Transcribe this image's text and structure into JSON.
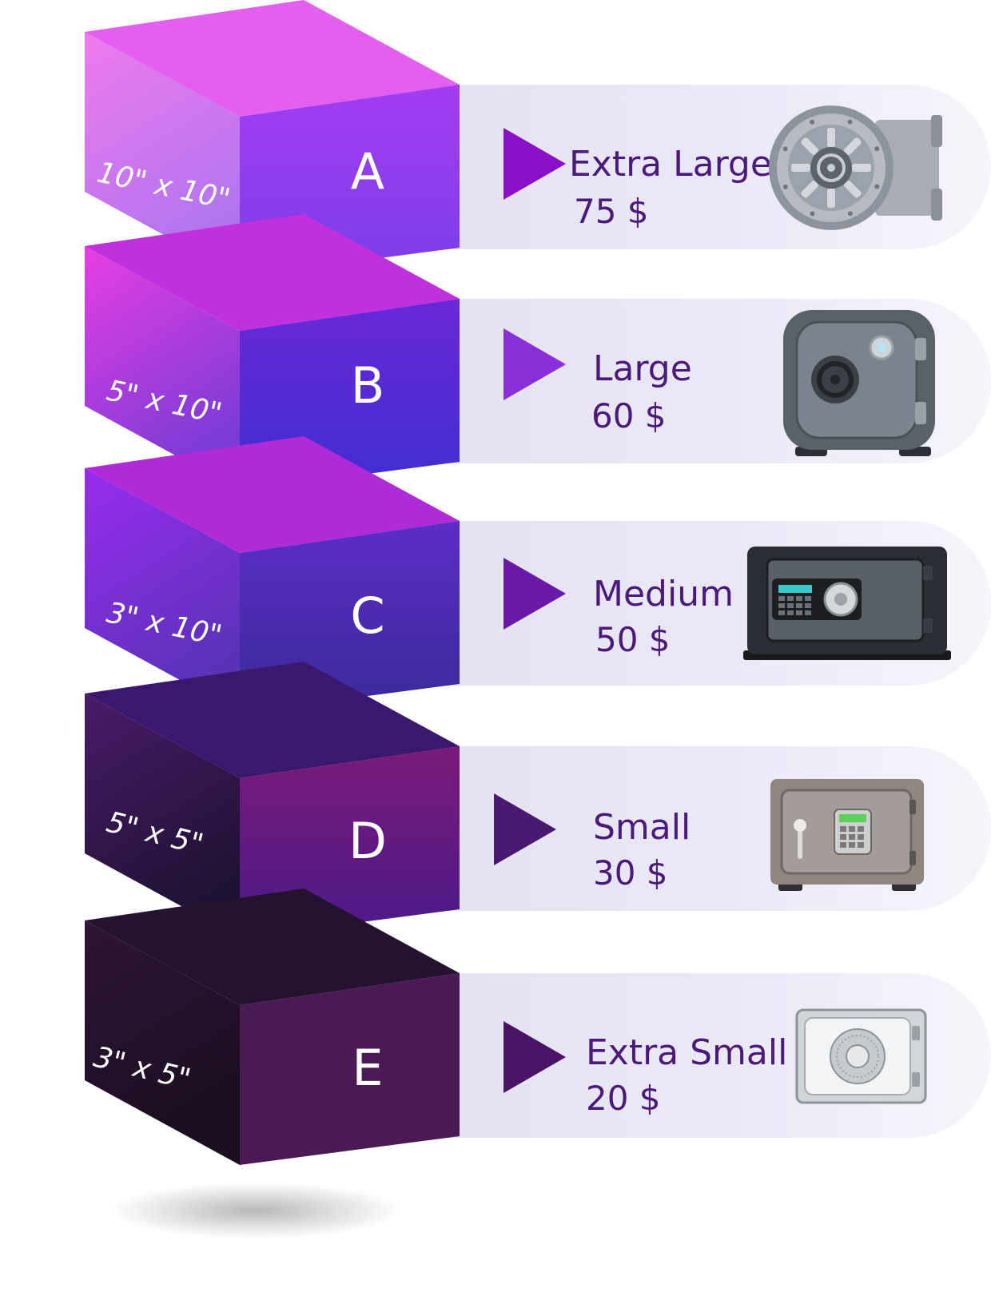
{
  "tiers": [
    {
      "letter": "A",
      "dimensions": "10\" x 10\"",
      "name": "Extra Large",
      "price": "75 $",
      "safe_icon": "bank-vault-door-icon",
      "colors": {
        "front_top": "#a43cf0",
        "front_bottom": "#7a3fe8",
        "side_top": "#f07aee",
        "side_bottom": "#b075ee",
        "top_face": "#e45ef0",
        "arrow": "#8a10c8"
      }
    },
    {
      "letter": "B",
      "dimensions": "5\" x 10\"",
      "name": "Large",
      "price": "60 $",
      "safe_icon": "round-vault-safe-icon",
      "colors": {
        "front_top": "#6a28d8",
        "front_bottom": "#3f2ed0",
        "side_top": "#e83ee4",
        "side_bottom": "#7a3bd6",
        "top_face": "#c030dc",
        "arrow": "#8a30d8"
      }
    },
    {
      "letter": "C",
      "dimensions": "3\" x 10\"",
      "name": "Medium",
      "price": "50 $",
      "safe_icon": "digital-keypad-safe-icon",
      "colors": {
        "front_top": "#5c2cc8",
        "front_bottom": "#3a2a98",
        "side_top": "#9a2cf0",
        "side_bottom": "#5a32b8",
        "top_face": "#b02ad8",
        "arrow": "#6a1aa8"
      }
    },
    {
      "letter": "D",
      "dimensions": "5\" x 5\"",
      "name": "Small",
      "price": "30 $",
      "safe_icon": "keypad-lock-safe-icon",
      "colors": {
        "front_top": "#7a1a7a",
        "front_bottom": "#4a1a88",
        "side_top": "#4a1a6a",
        "side_bottom": "#1e1232",
        "top_face": "#3a1870",
        "arrow": "#4a1a70"
      }
    },
    {
      "letter": "E",
      "dimensions": "3\" x 5\"",
      "name": "Extra Small",
      "price": "20 $",
      "safe_icon": "combination-dial-safe-icon",
      "colors": {
        "front_top": "#4a1a55",
        "front_bottom": "#4a1a55",
        "side_top": "#2e1438",
        "side_bottom": "#1a0e20",
        "top_face": "#241230",
        "arrow": "#4a1466"
      }
    }
  ]
}
